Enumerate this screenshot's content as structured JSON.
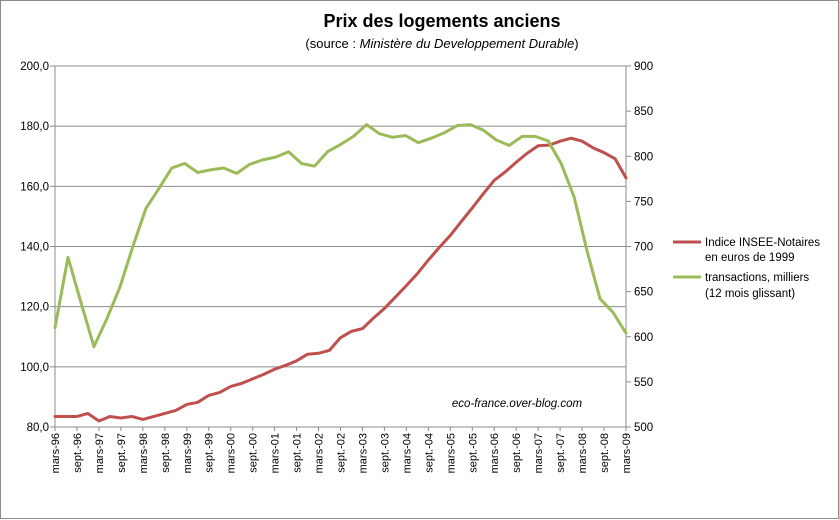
{
  "chart_data": {
    "type": "line",
    "title": "Prix des logements anciens",
    "subtitle_prefix": "(source : ",
    "subtitle_italic": "Ministère du Developpement Durable",
    "subtitle_suffix": ")",
    "watermark": "eco-france.over-blog.com",
    "x_labels": [
      "mars-96",
      "sept.-96",
      "mars-97",
      "sept.-97",
      "mars-98",
      "sept.-98",
      "mars-99",
      "sept.-99",
      "mars-00",
      "sept.-00",
      "mars-01",
      "sept.-01",
      "mars-02",
      "sept.-02",
      "mars-03",
      "sept.-03",
      "mars-04",
      "sept.-04",
      "mars-05",
      "sept.-05",
      "mars-06",
      "sept.-06",
      "mars-07",
      "sept.-07",
      "mars-08",
      "sept.-08",
      "mars-09"
    ],
    "y_left": {
      "min": 80,
      "max": 200,
      "step": 20,
      "ticks": [
        "80,0",
        "100,0",
        "120,0",
        "140,0",
        "160,0",
        "180,0",
        "200,0"
      ]
    },
    "y_right": {
      "min": 500,
      "max": 900,
      "step": 50,
      "ticks": [
        "500",
        "550",
        "600",
        "650",
        "700",
        "750",
        "800",
        "850",
        "900"
      ]
    },
    "grid": "horizontal",
    "legend_position": "right",
    "series": [
      {
        "name_line1": "Indice INSEE-Notaires",
        "name_line2": "en euros de 1999",
        "axis": "left",
        "color": "#c0504d",
        "values": [
          83.5,
          83.5,
          83.5,
          84.5,
          82,
          83.5,
          83,
          83.5,
          82.5,
          83.5,
          84.5,
          85.5,
          87.5,
          88.2,
          90.5,
          91.5,
          93.5,
          94.5,
          96,
          97.5,
          99.2,
          100.5,
          102,
          104.2,
          104.5,
          105.5,
          109.7,
          111.8,
          112.7,
          116.2,
          119.4,
          123.2,
          127,
          131,
          135.5,
          139.7,
          143.7,
          148.3,
          152.8,
          157.5,
          162,
          164.8,
          168,
          171,
          173.5,
          173.7,
          175,
          176,
          175,
          172.8,
          171.2,
          169.2,
          162.8
        ]
      },
      {
        "name_line1": "transactions, milliers",
        "name_line2": "(12 mois glissant)",
        "axis": "right",
        "color": "#9bbb59",
        "values": [
          610,
          688,
          638,
          589,
          620,
          655,
          700,
          742,
          764,
          787,
          792,
          782,
          785,
          787,
          781,
          791,
          796,
          799,
          805,
          792,
          789,
          805,
          813,
          822,
          835,
          825,
          821,
          823,
          815,
          820,
          826,
          834,
          835,
          829,
          818,
          812,
          822,
          822,
          817,
          792,
          755,
          695,
          642,
          627,
          604
        ]
      }
    ]
  }
}
